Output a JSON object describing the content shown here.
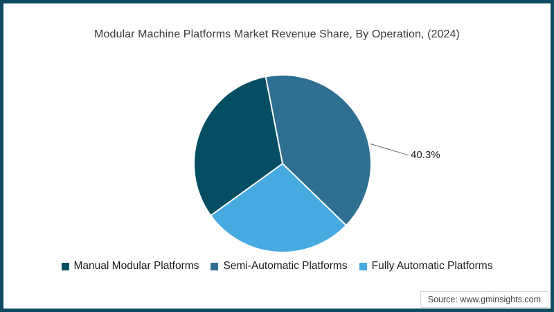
{
  "page": {
    "source": "Source: www.gminsights.com"
  },
  "colors": {
    "frame_border": "#0d4b64",
    "separator_lines": "#ffffff",
    "leader_line": "#666666",
    "title_text": "#3a3a3a"
  },
  "chart_data": {
    "type": "pie",
    "title": "Modular Machine Platforms Market Revenue Share, By Operation, (2024)",
    "unit": "%",
    "start_angle_deg": -11,
    "clockwise": true,
    "slices": [
      {
        "label": "Semi-Automatic Platforms",
        "value": 40.3,
        "color": "#2f6f92",
        "data_label": "40.3%"
      },
      {
        "label": "Fully Automatic Platforms",
        "value": 27.8,
        "color": "#47aae0",
        "data_label": ""
      },
      {
        "label": "Manual Modular Platforms",
        "value": 31.9,
        "color": "#044e63",
        "data_label": ""
      }
    ],
    "annotation": {
      "text": "40.3%",
      "target_slice": "Semi-Automatic Platforms"
    },
    "legend_position": "bottom",
    "legend": [
      {
        "label": "Manual Modular Platforms",
        "color": "#044e63"
      },
      {
        "label": "Semi-Automatic Platforms",
        "color": "#2f6f92"
      },
      {
        "label": "Fully Automatic Platforms",
        "color": "#47aae0"
      }
    ]
  }
}
